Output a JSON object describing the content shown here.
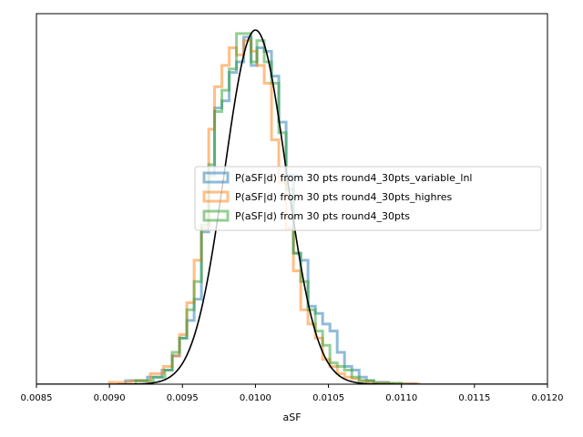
{
  "chart_data": {
    "type": "histogram",
    "xlabel": "aSF",
    "ylabel": "",
    "xlim": [
      0.0085,
      0.012
    ],
    "ylim": [
      0,
      1.0
    ],
    "x_ticks": [
      "0.0085",
      "0.0090",
      "0.0095",
      "0.0100",
      "0.0105",
      "0.0110",
      "0.0115",
      "0.0120"
    ],
    "x_tick_values": [
      0.0085,
      0.009,
      0.0095,
      0.01,
      0.0105,
      0.011,
      0.0115,
      0.012
    ],
    "legend_position": "center-right",
    "reference_curve": {
      "type": "gaussian",
      "mean": 0.01,
      "sigma": 0.00021,
      "peak": 1.0,
      "color": "#000000"
    },
    "series": [
      {
        "name": "P(aSF|d) from 30 pts round4_30pts_variable_lnl",
        "color": "#1f77b4",
        "edges": [
          0.00911,
          0.00926,
          0.00936,
          0.00943,
          0.00948,
          0.00953,
          0.00958,
          0.00963,
          0.00968,
          0.00972,
          0.00977,
          0.00982,
          0.00987,
          0.00992,
          0.00997,
          0.01001,
          0.01006,
          0.01011,
          0.01016,
          0.01021,
          0.01026,
          0.01031,
          0.01036,
          0.01041,
          0.01046,
          0.01051,
          0.01056,
          0.01061,
          0.01066,
          0.01071,
          0.01076,
          0.01081,
          0.01091,
          0.0111
        ],
        "values": [
          0.01,
          0.02,
          0.04,
          0.08,
          0.13,
          0.18,
          0.24,
          0.43,
          0.59,
          0.78,
          0.8,
          0.88,
          0.91,
          0.98,
          0.9,
          0.95,
          0.94,
          0.87,
          0.74,
          0.59,
          0.37,
          0.35,
          0.22,
          0.2,
          0.17,
          0.15,
          0.09,
          0.05,
          0.04,
          0.02,
          0.01,
          0.005,
          0.001
        ]
      },
      {
        "name": "P(aSF|d) from 30 pts round4_30pts_highres",
        "color": "#ff7f0e",
        "edges": [
          0.009,
          0.00915,
          0.00928,
          0.00937,
          0.00943,
          0.00948,
          0.00953,
          0.00958,
          0.00963,
          0.00968,
          0.00972,
          0.00977,
          0.00982,
          0.00987,
          0.00992,
          0.00997,
          0.01001,
          0.01006,
          0.01011,
          0.01016,
          0.01021,
          0.01026,
          0.01031,
          0.01036,
          0.01041,
          0.01046,
          0.01051,
          0.01056,
          0.01061,
          0.01066,
          0.01071,
          0.01076,
          0.01081,
          0.01091,
          0.01112
        ],
        "values": [
          0.005,
          0.01,
          0.03,
          0.05,
          0.08,
          0.14,
          0.23,
          0.35,
          0.44,
          0.72,
          0.84,
          0.9,
          0.95,
          0.93,
          0.97,
          0.94,
          0.9,
          0.85,
          0.69,
          0.57,
          0.44,
          0.32,
          0.21,
          0.17,
          0.13,
          0.07,
          0.05,
          0.03,
          0.02,
          0.015,
          0.01,
          0.007,
          0.004,
          0.001
        ]
      },
      {
        "name": "P(aSF|d) from 30 pts round4_30pts",
        "color": "#2ca02c",
        "edges": [
          0.00918,
          0.0093,
          0.00938,
          0.00943,
          0.00948,
          0.00953,
          0.00958,
          0.00963,
          0.00968,
          0.00972,
          0.00977,
          0.00982,
          0.00987,
          0.00992,
          0.00997,
          0.01001,
          0.01006,
          0.01011,
          0.01016,
          0.01021,
          0.01026,
          0.01031,
          0.01036,
          0.01041,
          0.01046,
          0.01051,
          0.01056,
          0.01061,
          0.01066,
          0.01071,
          0.01081,
          0.011
        ],
        "values": [
          0.01,
          0.02,
          0.04,
          0.09,
          0.13,
          0.21,
          0.29,
          0.45,
          0.62,
          0.77,
          0.83,
          0.89,
          0.99,
          0.99,
          0.91,
          0.97,
          0.91,
          0.85,
          0.71,
          0.55,
          0.37,
          0.29,
          0.21,
          0.15,
          0.11,
          0.06,
          0.05,
          0.04,
          0.02,
          0.01,
          0.003
        ]
      }
    ]
  }
}
